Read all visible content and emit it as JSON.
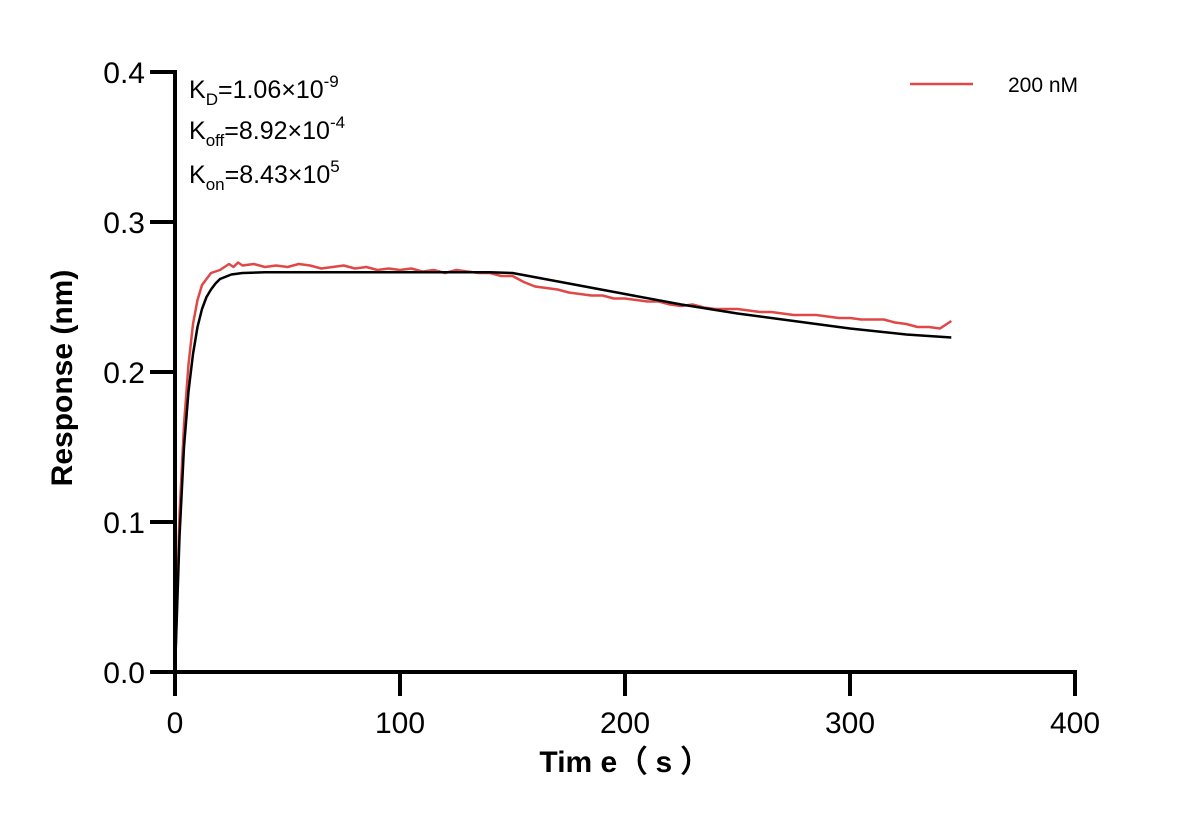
{
  "chart_data": {
    "type": "line",
    "xlabel": "Tim e（ s ）",
    "ylabel": "Response (nm)",
    "xlim": [
      0,
      400
    ],
    "ylim": [
      0,
      0.4
    ],
    "x_ticks": [
      "0",
      "100",
      "200",
      "300",
      "400"
    ],
    "y_ticks": [
      "0.0",
      "0.1",
      "0.2",
      "0.3",
      "0.4"
    ],
    "grid": false,
    "legend_position": "top-right",
    "annotations": [
      {
        "base": "K",
        "sub": "D",
        "value": "=1.06×10",
        "exp": "-9"
      },
      {
        "base": "K",
        "sub": "off",
        "value": "=8.92×10",
        "exp": "-4"
      },
      {
        "base": "K",
        "sub": "on",
        "value": "=8.43×10",
        "exp": "5"
      }
    ],
    "series": [
      {
        "name": "200 nM",
        "color": "#e04848",
        "role": "measured",
        "x": [
          0,
          2,
          4,
          6,
          8,
          10,
          12,
          14,
          16,
          18,
          20,
          22,
          24,
          26,
          28,
          30,
          35,
          40,
          45,
          50,
          55,
          60,
          65,
          70,
          75,
          80,
          85,
          90,
          95,
          100,
          105,
          110,
          115,
          120,
          125,
          130,
          135,
          140,
          145,
          150,
          155,
          160,
          165,
          170,
          175,
          180,
          185,
          190,
          195,
          200,
          205,
          210,
          215,
          220,
          225,
          230,
          235,
          240,
          245,
          250,
          255,
          260,
          265,
          270,
          275,
          280,
          285,
          290,
          295,
          300,
          305,
          310,
          315,
          320,
          325,
          330,
          335,
          340,
          345
        ],
        "y": [
          0.0,
          0.105,
          0.165,
          0.205,
          0.232,
          0.248,
          0.258,
          0.262,
          0.266,
          0.267,
          0.268,
          0.27,
          0.272,
          0.27,
          0.273,
          0.271,
          0.272,
          0.27,
          0.271,
          0.27,
          0.272,
          0.271,
          0.269,
          0.27,
          0.271,
          0.269,
          0.27,
          0.268,
          0.269,
          0.268,
          0.269,
          0.267,
          0.268,
          0.266,
          0.268,
          0.267,
          0.266,
          0.266,
          0.264,
          0.264,
          0.26,
          0.257,
          0.256,
          0.255,
          0.253,
          0.252,
          0.251,
          0.251,
          0.249,
          0.249,
          0.248,
          0.247,
          0.247,
          0.245,
          0.244,
          0.245,
          0.243,
          0.242,
          0.242,
          0.242,
          0.241,
          0.24,
          0.24,
          0.239,
          0.238,
          0.238,
          0.238,
          0.237,
          0.236,
          0.236,
          0.235,
          0.235,
          0.235,
          0.233,
          0.232,
          0.23,
          0.23,
          0.229,
          0.234
        ]
      },
      {
        "role": "fit",
        "color": "#000000",
        "x": [
          0,
          2,
          4,
          6,
          8,
          10,
          12,
          14,
          16,
          18,
          20,
          25,
          30,
          40,
          50,
          60,
          80,
          100,
          120,
          140,
          150,
          175,
          200,
          225,
          250,
          275,
          300,
          325,
          345
        ],
        "y": [
          0.0,
          0.09,
          0.15,
          0.187,
          0.212,
          0.23,
          0.242,
          0.25,
          0.255,
          0.259,
          0.262,
          0.265,
          0.266,
          0.2665,
          0.2665,
          0.2665,
          0.2665,
          0.2665,
          0.2665,
          0.2665,
          0.266,
          0.259,
          0.252,
          0.245,
          0.239,
          0.234,
          0.229,
          0.225,
          0.223
        ]
      }
    ]
  }
}
